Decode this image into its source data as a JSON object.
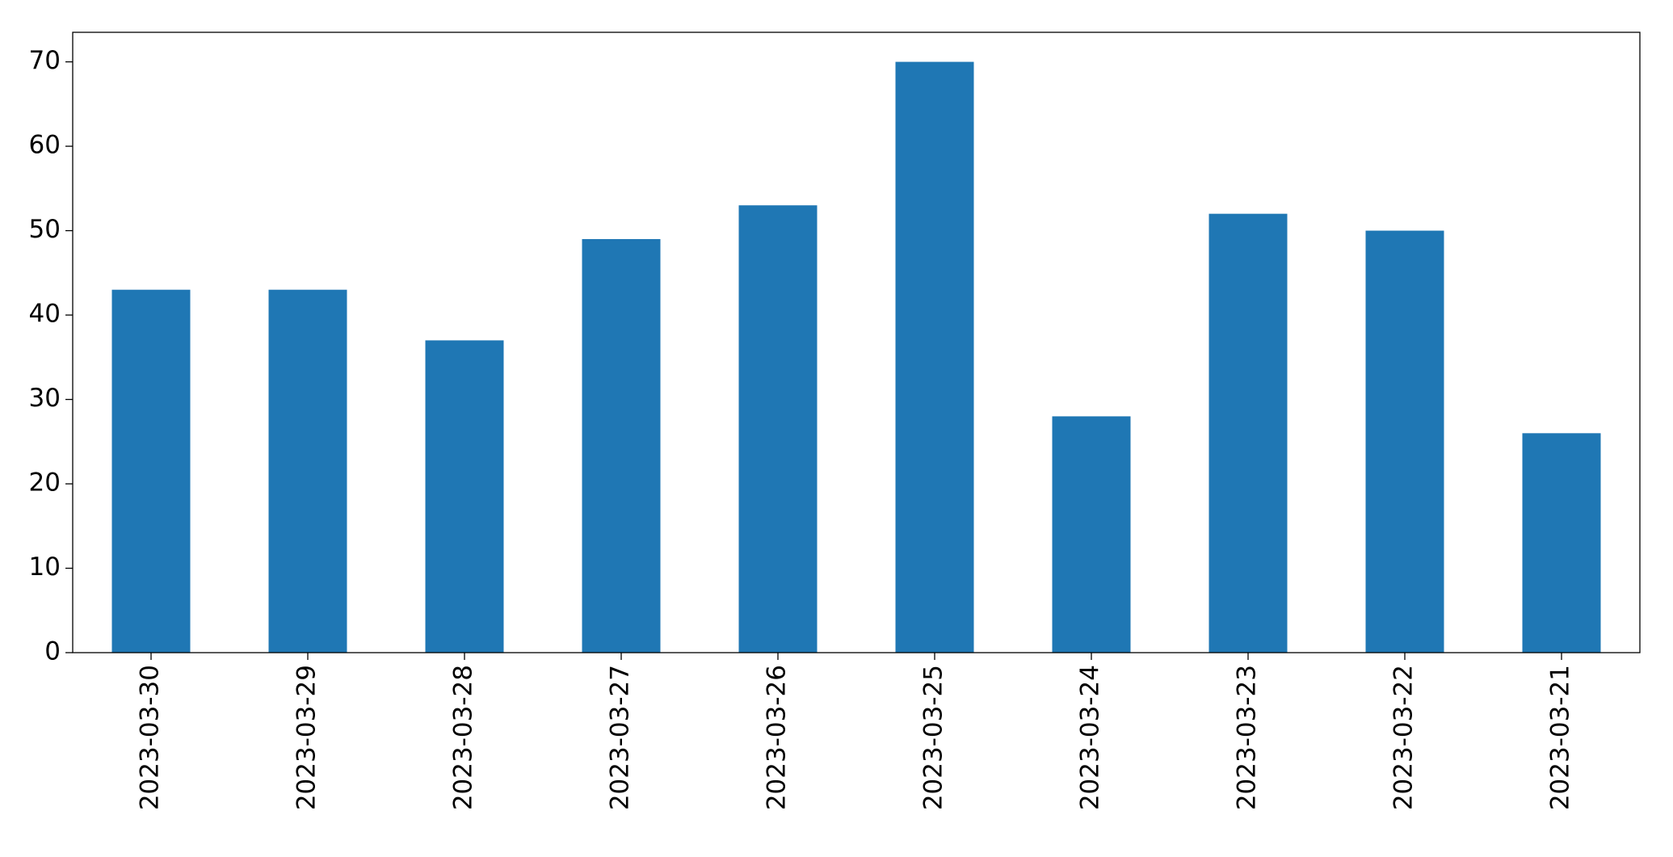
{
  "chart_data": {
    "type": "bar",
    "categories": [
      "2023-03-30",
      "2023-03-29",
      "2023-03-28",
      "2023-03-27",
      "2023-03-26",
      "2023-03-25",
      "2023-03-24",
      "2023-03-23",
      "2023-03-22",
      "2023-03-21"
    ],
    "values": [
      43,
      43,
      37,
      49,
      53,
      70,
      28,
      52,
      50,
      26
    ],
    "color": "#1f77b4",
    "ylim": [
      0,
      73.5
    ],
    "yticks": [
      0,
      10,
      20,
      30,
      40,
      50,
      60,
      70
    ],
    "grid": false
  }
}
